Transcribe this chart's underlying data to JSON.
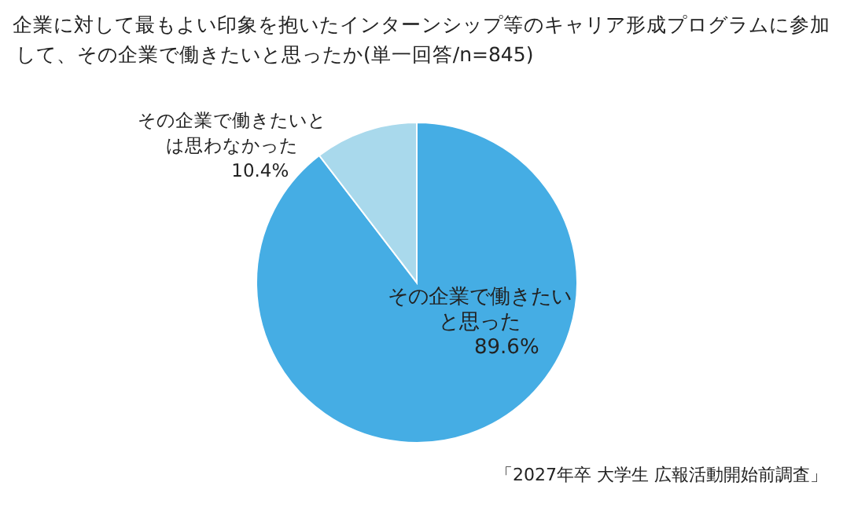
{
  "chart_data": {
    "type": "pie",
    "title": "企業に対して最もよい印象を抱いたインターンシップ等のキャリア形成プログラムに参加して、その企業で働きたいと思ったか(単一回答/n=845)",
    "categories": [
      "その企業で働きたいと思った",
      "その企業で働きたいとは思わなかった"
    ],
    "values": [
      89.6,
      10.4
    ],
    "value_labels": [
      "89.6%",
      "10.4%"
    ],
    "colors": [
      "#45ade4",
      "#a9d9ec"
    ],
    "annotations": [
      "「2027年卒 大学生 広報活動開始前調査」"
    ]
  }
}
